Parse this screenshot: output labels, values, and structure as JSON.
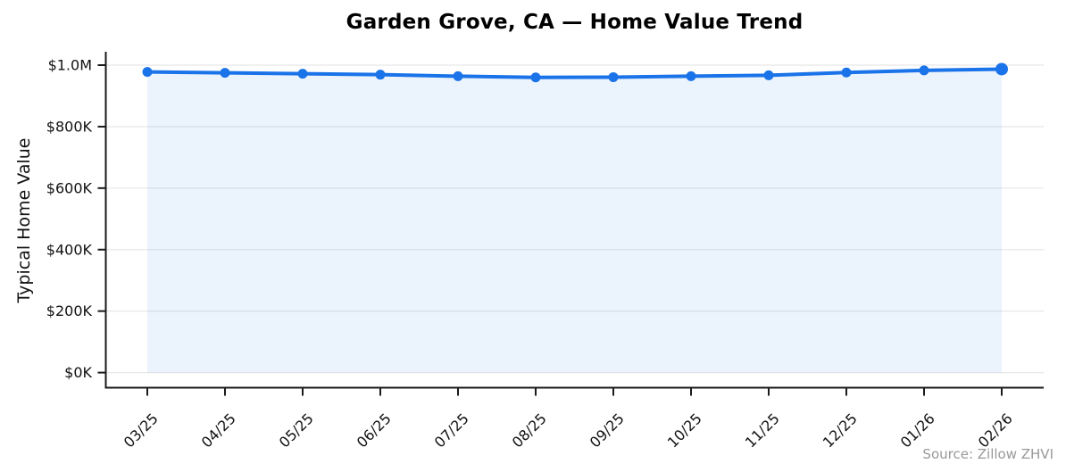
{
  "title": "Garden Grove, CA — Home Value Trend",
  "source_note": "Source: Zillow ZHVI",
  "chart_data": {
    "type": "line",
    "title": "Garden Grove, CA — Home Value Trend",
    "xlabel": "",
    "ylabel": "Typical Home Value",
    "categories": [
      "03/25",
      "04/25",
      "05/25",
      "06/25",
      "07/25",
      "08/25",
      "09/25",
      "10/25",
      "11/25",
      "12/25",
      "01/26",
      "02/26"
    ],
    "series": [
      {
        "name": "Typical Home Value",
        "values": [
          978000,
          975000,
          972000,
          969000,
          964000,
          960000,
          961000,
          964000,
          967000,
          976000,
          983000,
          987000
        ]
      }
    ],
    "yticks": [
      {
        "label": "$0K",
        "value": 0
      },
      {
        "label": "$200K",
        "value": 200000
      },
      {
        "label": "$400K",
        "value": 400000
      },
      {
        "label": "$600K",
        "value": 600000
      },
      {
        "label": "$800K",
        "value": 800000
      },
      {
        "label": "$1.0M",
        "value": 1000000
      }
    ],
    "ylim": [
      -50000,
      1035000
    ],
    "grid": "horizontal",
    "legend": "none",
    "marker": "circle",
    "area_fill": true,
    "colors": {
      "line": "#1a73e8",
      "fill": "rgba(26,115,232,0.085)",
      "gridline": "#e8e8e8",
      "axis": "#1a1a1a",
      "tick_text": "#111111",
      "source_text": "#999999"
    },
    "annotations": [
      "Source: Zillow ZHVI"
    ]
  }
}
